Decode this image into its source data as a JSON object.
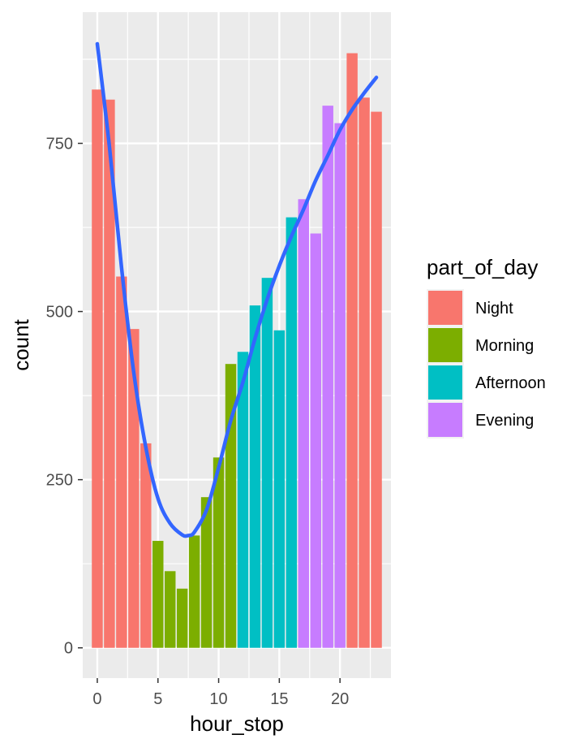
{
  "chart_data": {
    "type": "bar",
    "xlabel": "hour_stop",
    "ylabel": "count",
    "xlim": [
      -1.2,
      24.2
    ],
    "ylim": [
      -45,
      945
    ],
    "x_ticks": [
      0,
      5,
      10,
      15,
      20
    ],
    "x_tick_labels": [
      "0",
      "5",
      "10",
      "15",
      "20"
    ],
    "y_ticks": [
      0,
      250,
      500,
      750
    ],
    "y_tick_labels": [
      "0",
      "250",
      "500",
      "750"
    ],
    "grid": true,
    "legend": {
      "title": "part_of_day",
      "placement": "right",
      "entries": [
        {
          "label": "Night",
          "color": "#F8766D"
        },
        {
          "label": "Morning",
          "color": "#7CAE00"
        },
        {
          "label": "Afternoon",
          "color": "#00BFC4"
        },
        {
          "label": "Evening",
          "color": "#C77CFF"
        }
      ]
    },
    "bars": [
      {
        "x": 0,
        "y": 830,
        "group": "Night"
      },
      {
        "x": 1,
        "y": 815,
        "group": "Night"
      },
      {
        "x": 2,
        "y": 552,
        "group": "Night"
      },
      {
        "x": 3,
        "y": 474,
        "group": "Night"
      },
      {
        "x": 4,
        "y": 304,
        "group": "Night"
      },
      {
        "x": 5,
        "y": 159,
        "group": "Morning"
      },
      {
        "x": 6,
        "y": 114,
        "group": "Morning"
      },
      {
        "x": 7,
        "y": 88,
        "group": "Morning"
      },
      {
        "x": 8,
        "y": 167,
        "group": "Morning"
      },
      {
        "x": 9,
        "y": 224,
        "group": "Morning"
      },
      {
        "x": 10,
        "y": 283,
        "group": "Morning"
      },
      {
        "x": 11,
        "y": 422,
        "group": "Morning"
      },
      {
        "x": 12,
        "y": 440,
        "group": "Afternoon"
      },
      {
        "x": 13,
        "y": 509,
        "group": "Afternoon"
      },
      {
        "x": 14,
        "y": 550,
        "group": "Afternoon"
      },
      {
        "x": 15,
        "y": 472,
        "group": "Afternoon"
      },
      {
        "x": 16,
        "y": 640,
        "group": "Afternoon"
      },
      {
        "x": 17,
        "y": 667,
        "group": "Evening"
      },
      {
        "x": 18,
        "y": 616,
        "group": "Evening"
      },
      {
        "x": 19,
        "y": 806,
        "group": "Evening"
      },
      {
        "x": 20,
        "y": 780,
        "group": "Evening"
      },
      {
        "x": 21,
        "y": 884,
        "group": "Night"
      },
      {
        "x": 22,
        "y": 818,
        "group": "Night"
      },
      {
        "x": 23,
        "y": 797,
        "group": "Night"
      }
    ],
    "smooth": {
      "color": "#3366FF",
      "x": [
        0,
        1,
        2,
        3,
        4,
        5,
        6,
        7,
        7.5,
        8,
        9,
        10,
        11,
        12,
        13,
        14,
        15,
        16,
        17,
        18,
        19,
        20,
        21,
        22,
        23
      ],
      "y": [
        898,
        745,
        565,
        410,
        298,
        222,
        185,
        168,
        167,
        172,
        205,
        268,
        338,
        395,
        460,
        518,
        568,
        612,
        652,
        695,
        732,
        770,
        800,
        825,
        848
      ]
    }
  }
}
